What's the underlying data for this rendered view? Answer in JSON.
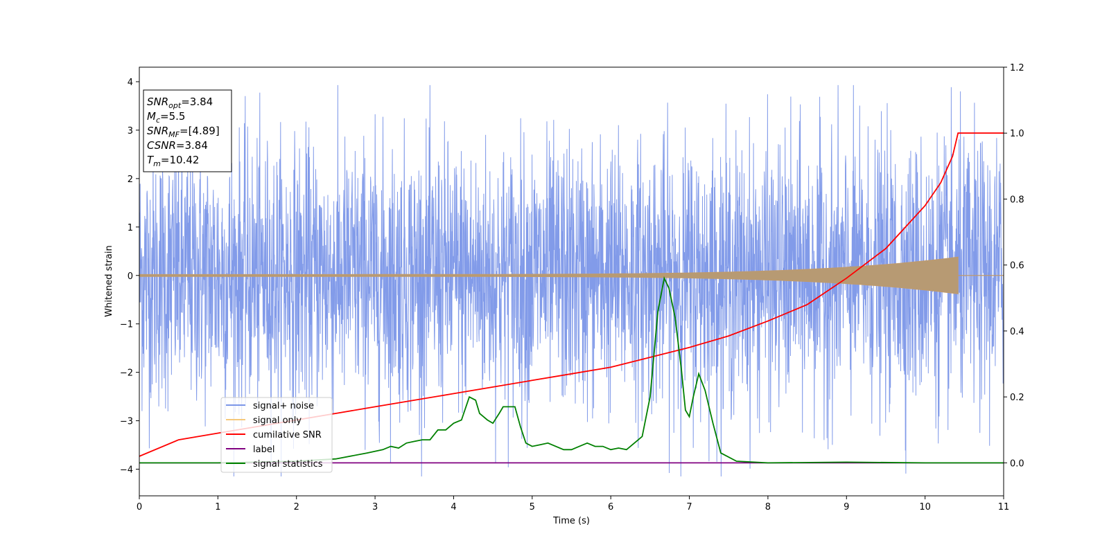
{
  "chart_data": {
    "type": "line",
    "xlabel": "Time (s)",
    "ylabel": "Whitened strain",
    "xlim": [
      0,
      11
    ],
    "ylim": [
      -4.55,
      4.3
    ],
    "y2lim": [
      -0.1,
      1.2
    ],
    "x_ticks": [
      "0",
      "1",
      "2",
      "3",
      "4",
      "5",
      "6",
      "7",
      "8",
      "9",
      "10",
      "11"
    ],
    "y_ticks": [
      "−4",
      "−3",
      "−2",
      "−1",
      "0",
      "1",
      "2",
      "3",
      "4"
    ],
    "y2_ticks": [
      "0.0",
      "0.2",
      "0.4",
      "0.6",
      "0.8",
      "1.0",
      "1.2"
    ],
    "grid": false,
    "legend_position": "lower-left",
    "info_box": {
      "lines": [
        {
          "label": "SNR",
          "sub": "opt",
          "value": "=3.84"
        },
        {
          "label": "M",
          "sub": "c",
          "value": "=5.5"
        },
        {
          "label": "SNR",
          "sub": "MF",
          "value": "=[4.89]"
        },
        {
          "label": "CSNR",
          "sub": "",
          "value": "=3.84"
        },
        {
          "label": "T",
          "sub": "m",
          "value": "=10.42"
        }
      ]
    },
    "series": [
      {
        "name": "signal+ noise",
        "color": "#7b96e8",
        "axis": "left",
        "envelope": {
          "typical_abs": 1.6,
          "min": -4.15,
          "max": 3.93
        }
      },
      {
        "name": "signal only",
        "color": "#f5c87a",
        "axis": "left",
        "chirp": {
          "start_x": 0,
          "end_x": 10.42,
          "start_amp": 0.02,
          "end_amp": 0.38
        }
      },
      {
        "name": "cumilative SNR",
        "color": "#ff0000",
        "axis": "right",
        "x": [
          0,
          0.5,
          1,
          1.5,
          2,
          2.5,
          3,
          3.5,
          4,
          4.5,
          5,
          5.5,
          6,
          6.5,
          7,
          7.5,
          8,
          8.5,
          9,
          9.5,
          10,
          10.2,
          10.35,
          10.42,
          11
        ],
        "values": [
          0.02,
          0.07,
          0.09,
          0.11,
          0.13,
          0.15,
          0.17,
          0.19,
          0.21,
          0.23,
          0.25,
          0.27,
          0.29,
          0.32,
          0.35,
          0.385,
          0.43,
          0.48,
          0.56,
          0.65,
          0.78,
          0.85,
          0.93,
          1.0,
          1.0
        ]
      },
      {
        "name": "label",
        "color": "#800080",
        "axis": "right",
        "x": [
          0,
          11
        ],
        "values": [
          0,
          0
        ]
      },
      {
        "name": "signal statistics",
        "color": "#008000",
        "axis": "right",
        "x": [
          0,
          1.0,
          2.0,
          2.5,
          2.9,
          3.1,
          3.2,
          3.3,
          3.4,
          3.5,
          3.6,
          3.7,
          3.8,
          3.9,
          4.0,
          4.1,
          4.2,
          4.28,
          4.33,
          4.38,
          4.43,
          4.5,
          4.58,
          4.63,
          4.7,
          4.78,
          4.85,
          4.92,
          5.0,
          5.1,
          5.2,
          5.4,
          5.5,
          5.6,
          5.7,
          5.8,
          5.9,
          6.0,
          6.1,
          6.2,
          6.3,
          6.4,
          6.5,
          6.6,
          6.68,
          6.74,
          6.82,
          6.9,
          6.95,
          7.0,
          7.05,
          7.12,
          7.2,
          7.3,
          7.4,
          7.6,
          8.0,
          9.0,
          10.0,
          11.0
        ],
        "values": [
          0.0,
          0.0,
          0.005,
          0.012,
          0.03,
          0.04,
          0.05,
          0.045,
          0.06,
          0.065,
          0.07,
          0.07,
          0.1,
          0.1,
          0.12,
          0.13,
          0.2,
          0.19,
          0.15,
          0.14,
          0.13,
          0.12,
          0.15,
          0.17,
          0.17,
          0.17,
          0.11,
          0.06,
          0.05,
          0.055,
          0.06,
          0.04,
          0.04,
          0.05,
          0.06,
          0.05,
          0.05,
          0.04,
          0.045,
          0.04,
          0.06,
          0.08,
          0.2,
          0.46,
          0.56,
          0.53,
          0.44,
          0.28,
          0.16,
          0.14,
          0.2,
          0.27,
          0.22,
          0.12,
          0.03,
          0.005,
          0.0,
          0.002,
          0.0,
          0.0
        ]
      }
    ]
  }
}
